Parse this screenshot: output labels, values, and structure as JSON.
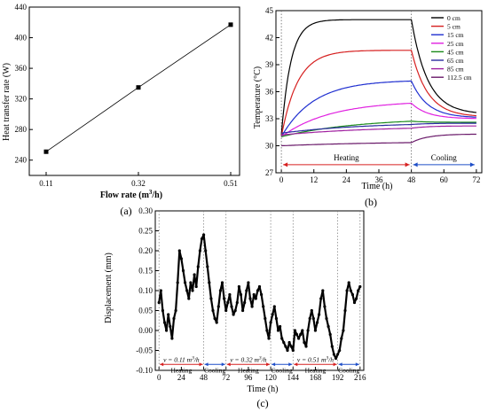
{
  "chart_data": [
    {
      "panel_label": "(a)",
      "type": "line",
      "xlabel": "Flow rate (m",
      "xlabel_sup": "3",
      "xlabel_tail": "/h)",
      "ylabel": "Heat transfer rate (W)",
      "categories": [
        "0.11",
        "0.32",
        "0.51"
      ],
      "values": [
        251,
        335,
        417
      ],
      "ylim": [
        220,
        440
      ],
      "yticks": [
        240,
        280,
        320,
        360,
        400,
        440
      ]
    },
    {
      "panel_label": "(b)",
      "type": "line",
      "xlabel": "Time (h)",
      "ylabel": "Temperature (°C)",
      "xlim": [
        -2,
        74
      ],
      "ylim": [
        27,
        45
      ],
      "xticks": [
        0,
        12,
        24,
        36,
        48,
        60,
        72
      ],
      "yticks": [
        27,
        30,
        33,
        36,
        39,
        42,
        45
      ],
      "phase_boundary": 48,
      "phases": [
        {
          "label": "Heating",
          "from": 0,
          "to": 48,
          "color": "#d62020"
        },
        {
          "label": "Cooling",
          "from": 48,
          "to": 72,
          "color": "#1f4fc8"
        }
      ],
      "series": [
        {
          "name": "0 cm",
          "color": "#000000",
          "start": 31.2,
          "peak": 44.0,
          "end": 33.5,
          "tau": 3.5
        },
        {
          "name": "5 cm",
          "color": "#d62020",
          "start": 31.0,
          "peak": 40.6,
          "end": 33.2,
          "tau": 6
        },
        {
          "name": "15 cm",
          "color": "#1f2fd0",
          "start": 31.0,
          "peak": 37.3,
          "end": 33.1,
          "tau": 12
        },
        {
          "name": "25 cm",
          "color": "#e020e0",
          "start": 31.0,
          "peak": 35.0,
          "end": 33.0,
          "tau": 18
        },
        {
          "name": "45 cm",
          "color": "#1a8a1a",
          "start": 31.0,
          "peak": 33.1,
          "end": 32.6,
          "tau": 28
        },
        {
          "name": "65 cm",
          "color": "#2a2aa0",
          "start": 31.4,
          "peak": 32.6,
          "end": 32.5,
          "tau": 30
        },
        {
          "name": "85 cm",
          "color": "#a020a0",
          "start": 31.2,
          "peak": 32.2,
          "end": 32.2,
          "tau": 35
        },
        {
          "name": "112.5 cm",
          "color": "#6a1a6a",
          "start": 30.0,
          "peak": 30.5,
          "end": 31.3,
          "tau": 40
        }
      ]
    },
    {
      "panel_label": "(c)",
      "type": "scatter",
      "xlabel": "Time (h)",
      "ylabel": "Displacement (mm)",
      "xlim": [
        -4,
        220
      ],
      "ylim": [
        -0.1,
        0.3
      ],
      "xticks": [
        0,
        24,
        48,
        72,
        96,
        120,
        144,
        168,
        192,
        216
      ],
      "yticks": [
        -0.1,
        -0.05,
        0.0,
        0.05,
        0.1,
        0.15,
        0.2,
        0.25,
        0.3
      ],
      "phase_boundaries": [
        0,
        48,
        72,
        120,
        144,
        192,
        216
      ],
      "flow_labels": [
        {
          "text": "v = 0.11 m",
          "sup": "3",
          "tail": "/h",
          "x": 24
        },
        {
          "text": "v = 0.32 m",
          "sup": "3",
          "tail": "/h",
          "x": 96
        },
        {
          "text": "v = 0.51 m",
          "sup": "3",
          "tail": "/h",
          "x": 168
        }
      ],
      "phase_labels": [
        {
          "text": "Heating",
          "x": 24
        },
        {
          "text": "Cooling",
          "x": 60
        },
        {
          "text": "Heating",
          "x": 96
        },
        {
          "text": "Cooling",
          "x": 132
        },
        {
          "text": "Heating",
          "x": 168
        },
        {
          "text": "Cooling",
          "x": 204
        }
      ],
      "points": [
        [
          0,
          0.07
        ],
        [
          2,
          0.1
        ],
        [
          4,
          0.05
        ],
        [
          6,
          0.02
        ],
        [
          8,
          0.0
        ],
        [
          10,
          0.04
        ],
        [
          12,
          0.01
        ],
        [
          14,
          -0.02
        ],
        [
          16,
          0.03
        ],
        [
          18,
          0.05
        ],
        [
          20,
          0.12
        ],
        [
          22,
          0.2
        ],
        [
          24,
          0.18
        ],
        [
          26,
          0.15
        ],
        [
          28,
          0.12
        ],
        [
          30,
          0.1
        ],
        [
          32,
          0.08
        ],
        [
          34,
          0.12
        ],
        [
          36,
          0.1
        ],
        [
          38,
          0.14
        ],
        [
          40,
          0.11
        ],
        [
          42,
          0.16
        ],
        [
          44,
          0.2
        ],
        [
          46,
          0.23
        ],
        [
          48,
          0.24
        ],
        [
          50,
          0.2
        ],
        [
          52,
          0.16
        ],
        [
          54,
          0.12
        ],
        [
          56,
          0.08
        ],
        [
          58,
          0.05
        ],
        [
          60,
          0.03
        ],
        [
          62,
          0.02
        ],
        [
          64,
          0.06
        ],
        [
          66,
          0.1
        ],
        [
          68,
          0.12
        ],
        [
          70,
          0.08
        ],
        [
          72,
          0.05
        ],
        [
          74,
          0.07
        ],
        [
          76,
          0.09
        ],
        [
          78,
          0.06
        ],
        [
          80,
          0.04
        ],
        [
          82,
          0.05
        ],
        [
          84,
          0.07
        ],
        [
          86,
          0.11
        ],
        [
          88,
          0.09
        ],
        [
          90,
          0.05
        ],
        [
          92,
          0.07
        ],
        [
          94,
          0.1
        ],
        [
          96,
          0.12
        ],
        [
          98,
          0.08
        ],
        [
          100,
          0.06
        ],
        [
          102,
          0.09
        ],
        [
          104,
          0.08
        ],
        [
          106,
          0.1
        ],
        [
          108,
          0.11
        ],
        [
          110,
          0.09
        ],
        [
          112,
          0.06
        ],
        [
          114,
          0.03
        ],
        [
          116,
          0.0
        ],
        [
          118,
          -0.02
        ],
        [
          120,
          0.02
        ],
        [
          122,
          0.04
        ],
        [
          124,
          0.06
        ],
        [
          126,
          0.03
        ],
        [
          128,
          0.0
        ],
        [
          130,
          0.01
        ],
        [
          132,
          -0.02
        ],
        [
          134,
          -0.03
        ],
        [
          136,
          -0.04
        ],
        [
          138,
          -0.05
        ],
        [
          140,
          -0.03
        ],
        [
          142,
          -0.04
        ],
        [
          144,
          -0.05
        ],
        [
          146,
          0.0
        ],
        [
          148,
          -0.01
        ],
        [
          150,
          -0.02
        ],
        [
          152,
          -0.01
        ],
        [
          154,
          0.0
        ],
        [
          156,
          -0.03
        ],
        [
          158,
          -0.04
        ],
        [
          160,
          0.0
        ],
        [
          162,
          0.03
        ],
        [
          164,
          0.05
        ],
        [
          166,
          0.03
        ],
        [
          168,
          0.0
        ],
        [
          170,
          0.02
        ],
        [
          172,
          0.04
        ],
        [
          174,
          0.08
        ],
        [
          176,
          0.1
        ],
        [
          178,
          0.06
        ],
        [
          180,
          0.03
        ],
        [
          182,
          0.01
        ],
        [
          184,
          -0.01
        ],
        [
          186,
          -0.04
        ],
        [
          188,
          -0.06
        ],
        [
          190,
          -0.07
        ],
        [
          192,
          -0.06
        ],
        [
          194,
          -0.05
        ],
        [
          196,
          -0.02
        ],
        [
          198,
          0.0
        ],
        [
          200,
          0.05
        ],
        [
          202,
          0.1
        ],
        [
          204,
          0.12
        ],
        [
          206,
          0.1
        ],
        [
          208,
          0.09
        ],
        [
          210,
          0.07
        ],
        [
          212,
          0.08
        ],
        [
          214,
          0.1
        ],
        [
          216,
          0.11
        ]
      ]
    }
  ]
}
